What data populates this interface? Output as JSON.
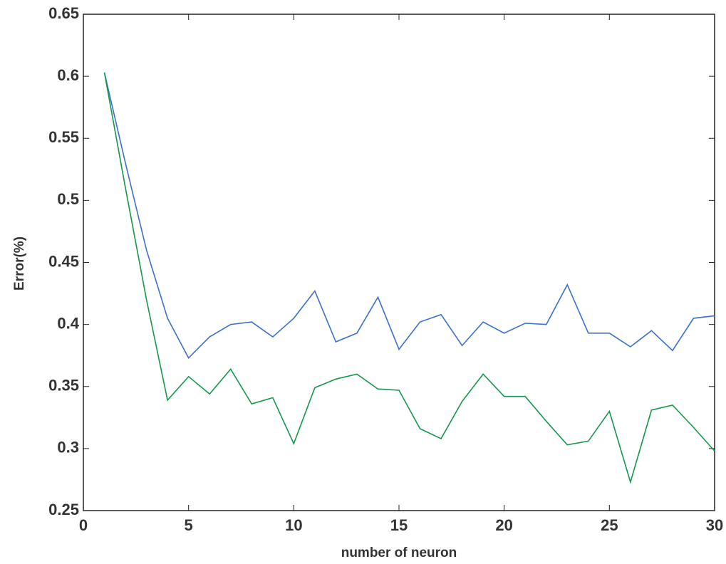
{
  "chart_data": {
    "type": "line",
    "x_label": "number of neuron",
    "y_label": "Error(%)",
    "x": [
      1,
      2,
      3,
      4,
      5,
      6,
      7,
      8,
      9,
      10,
      11,
      12,
      13,
      14,
      15,
      16,
      17,
      18,
      19,
      20,
      21,
      22,
      23,
      24,
      25,
      26,
      27,
      28,
      29,
      30
    ],
    "series": [
      {
        "color": "#3b6fd0",
        "values": [
          0.603,
          0.53,
          0.46,
          0.405,
          0.373,
          0.39,
          0.4,
          0.402,
          0.39,
          0.405,
          0.427,
          0.386,
          0.393,
          0.422,
          0.38,
          0.402,
          0.408,
          0.383,
          0.402,
          0.393,
          0.401,
          0.4,
          0.432,
          0.393,
          0.393,
          0.382,
          0.395,
          0.379,
          0.405,
          0.407
        ]
      },
      {
        "color": "#14984a",
        "values": [
          0.603,
          0.51,
          0.42,
          0.339,
          0.358,
          0.344,
          0.364,
          0.336,
          0.341,
          0.304,
          0.349,
          0.356,
          0.36,
          0.348,
          0.347,
          0.316,
          0.308,
          0.338,
          0.36,
          0.342,
          0.342,
          0.322,
          0.303,
          0.306,
          0.33,
          0.273,
          0.331,
          0.335,
          0.317,
          0.298
        ]
      }
    ],
    "xlim": [
      0,
      30
    ],
    "xticks": [
      0,
      5,
      10,
      15,
      20,
      25,
      30
    ],
    "ylim": [
      0.25,
      0.65
    ],
    "yticks": [
      0.25,
      0.3,
      0.35,
      0.4,
      0.45,
      0.5,
      0.55,
      0.6,
      0.65
    ],
    "grid": false
  }
}
